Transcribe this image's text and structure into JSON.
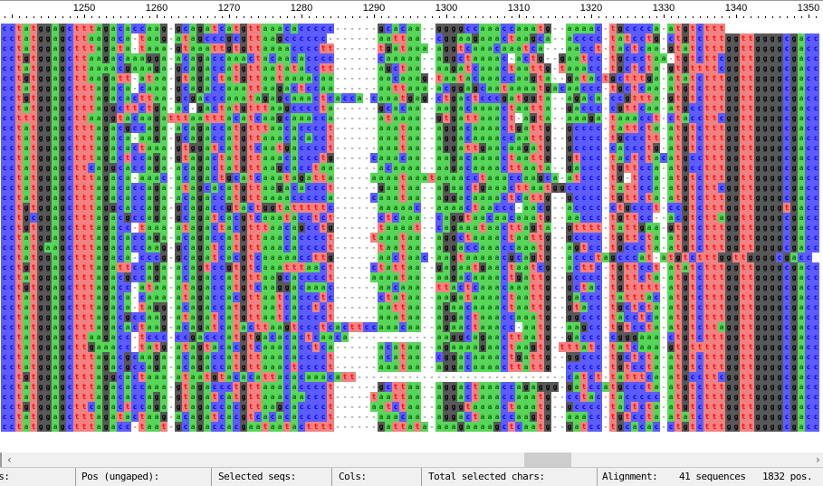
{
  "ruler": {
    "labels": [
      "1250",
      "1260",
      "1270",
      "1280",
      "1290",
      "1300",
      "1310",
      "1320",
      "1330",
      "1340",
      "1350"
    ]
  },
  "colors": {
    "a": {
      "bg": "#58d65a",
      "fg": "#0b6a0b"
    },
    "c": {
      "bg": "#5c5cff",
      "fg": "#0000e6"
    },
    "g": {
      "bg": "#585858",
      "fg": "#000000"
    },
    "t": {
      "bg": "#f28282",
      "fg": "#ff0000"
    },
    "-": {
      "bg": "#ffffff",
      "fg": "#8a8a8a"
    }
  },
  "sequences": [
    "cctatggagctttagacaccaag-gcagatcatgttaaacaccccc------gcacaa--ggggccaaaccaaatg--aaaac-tgcccca-atgtcttt",
    "cctatggagcttaagaca-taag-atagcccgcgttaagcccccc-------aattaa--cggaagaaactaagca--acccc-tatcctg-ctgtctttggttggggcgacc",
    "cctatggagctttagata-taaa-gtaaattgtgttaaaacccctt------tgataaa-aggtcaaacaaatca---aacct-tactcaa-gtatctttggttggggcgacc",
    "cctgtggagcttaagacaaagga-acagaccaaactacaacacccc------caaaaa--aggctaaaac-actg--gaatcc-tgccctaa-tgtcttcggttggggcgacc",
    "cctatggagcttaaaacgaaaga-gcagaccatgttaatatacctt------agctaa--aagatcaaactaattg-taaacc-tgctcta-gtgttttcggttggggcgacc",
    "cctgtggagcttaagatt-ataa-gtagactatgttaataaaacaa------aacaaag-taatacaaaccaagta--gatactgctttga-atatctttggttggggcgacc",
    "cctatggagctttagaca-caaa-gcagaccaaattaagactccaa------aattaaa-acggagcaataaaatgacaaccc-tgctcaa-atgtctttggttggggcgacc",
    "cctgtggagctttagacacttaa-gcgacccaaatagagcaaactcacca-caaatgag-ctgactcccgatggta--agaca-ccgttta-gtgtctttggttggggcgacc",
    "cctatggagctttaggcttctga-ac-gactatgtttaagccccta------gcacaa--aagacaaaactaatta--gaccc-cgttcaa-atgcctttggttggggcgacc",
    "cctttggagcttaaggtacaagatttaatttacatcaagcaaacca------ataaaa--gtgattaaact-agta--aaaga-taaacct-ctaccttcggttggggcgacc",
    "cctatggagctttagacgccaga-acagaccatgtttaacacccct------aaataa--aggacaaaactgattg--gcccc-tattcta-atgtctttggttggggcgacc",
    "cctatggagctttagaca-aaga-gcagaccatgttaaacacacct------aaataa--aggacaaaaccaattg--gcccc-tgccctt-atgtctttggttggggcgacc",
    "cctatggagctttagacactaaa-gtggatcatgtcaatgacccct------aaataa--aggattgaacaagatg--gcccc-caccctg-atgtctttggttggggcgacc",
    "cctatggagctttagactccaga-gtagactatgttaaacaccctg-----caaacaa--aagacaaaactaattg--gtccc-tactctacatgcctttggttggggcgacc",
    "cctatggagcttcaggcaccaga-acagactatgttaagcacctaa------acaaaa--aagacaaaacttaata--gaccc-tgttcca-atgcctttggttggggcgacc",
    "cctatggagctttagaca-aaac-acagactgcatcaaatagatta-----aaaataaataaaacctaaaccaagca-atccc-tg-tcca-atgtctttggttggggcgacc",
    "cctatggagctttagacaccaga-atagcacatgttaagacaccct------gaataa--agaactgaaacttaatggccccc-tattcca-atgtcttcggttggggcgacc",
    "cctatggagctttagacaccaga-acagaccatgttaaaaccccca-----caaataa--aggacaaaactcattg--gcccc-tgttcta-atgtctttggttggggcgacc",
    "cctgtggagctttaggcaccaga-gcagaccgtactggtatttttc------aaaaac--aaaactaaccc-aacg--acccc-ctgccct-ccgtctttggttggggtgacc",
    "cctgcggagctttagacgccaga-gcagatcacgtcaaatacctct------ctcaaa--caggtaacaacaaatg--aaccc-tgttcc--acgtcttaggttggggcgacc",
    "cctgtggagctttagacc-taaa-atagactacgtttaacagcctg------taaaat--cagaaataacttagta--gtttt-tattgaa-gtgtctttggttggggcgacc",
    "cctatggagctttagacaccaga-acagaccatgttaaacacccct-----taaataa--aggctaaaactaattg--gcccc-tgttcta-atgtctttggttggggcgacc",
    "cctatgaagctttagacaccaag-gcagatcatgttaaacacccct------taataa--aggaccaaaccaaatg--agtcc-tgcccta-atgtctttggttggggcgacc",
    "cctatggagctttagaca-cccg-gcagatcacgtcaaaaaccttg------aactaac-aagtaaaaacgcagtg--accctagcccat-atgtctttggttggggcgacc",
    "cctgtggagctttagattccaga-acagtccgtgtcaaatttaact-----ctattaa--gagaatgaactaatcg--acttc-tgttcct-atatctttggttggggcgacc",
    "cctatggagctttagacgccaga-acagaccatgttaagcacccct-----aaaataa--aagacaaaactgattg--gcccc-tgttcta-atgtctttggttggggcgacc",
    "cctgtggagctttagacc-ataa-atagaccatgtcaaggacaaac------aacaaa--ttactcaaacaaattg--gctac-tgttttt-atgtctttggttggggcgacc",
    "cctatggagctttagaca-caaa-atagaccacgttaatcaccctc------ctataa--aagataaaactaattg--gaccc-tatttac-atgtctttggttggggcgacc",
    "cctatggagctttagaca-tagg-acagaccatgttaatcacctct------aattaa--agaacaaaactaattg--gtacc-tgctcta-atgtctttggttggggcgacc",
    "cctatggagctttagacgccaag-atagatcatgttaatcacccct------aaataa--aggactaaaccaaatg--ggccc-tacctca-atgtctttggttggggcgacc",
    "cctatggagctttagacactaag-acagatcatacttaagtccctcacttccaaacaa--agaactaaacc-aatg--aagcc-tgtccta-atgtcttaggttggggcgacc",
    "cctatggagcttaagacc-tccc-ccgacccatgtgacacactcaaca------------aaggcagaacttaatg--gaccc-cgggaaa-ctgtctttggttggggcgacc",
    "cctatggagcttgaaacc-tatg-atagtacacgtcaaacacctca------acataa--agaaaagaactaagtg-tttatc-tatcaaa-gtgtttttggttggggcgacc",
    "cctatggagctttagacgcaaga-acagaccatgttaaacacccct------acataa--cggacaaaactgattg--ggccc-tgctcta-atgtctttggttggggcgacc",
    "cctatggagctttagacgccaga-acagaccatgttaaactcccct------aaataa--aggacaaaacttattg--ccccc-tgtccta-atgtctttggttggggcgacc",
    "cctgtggagctttaggcactaaa-ataatgtacacattacacaaacatt-----------------------------catct-tatttca-atgccttcggttggggcgacc",
    "cctatggagctttagacaccaaa-gtagaccctgttaaacacccct------gcttaa--aggactaaaccagaggg-gatccatgcccta-atgtctttggttggggcgacc",
    "cctatggagctttagacaccaga-gtagatcatgttaaacaaccct-----taattaa--aggactaaaccaaatg--cctac-taccccc-atgtctttggttggggcgacc",
    "cctgtggagcttcagactccaga-gtagaccacgttaagcacccct-----aatctaa--agggtaaaactaaatg--gcccc-tactcta-atgtctttggttggggcgacc",
    "cctatggagctttagatactaag-acagatcacgtcacacacccct------aaacaa--aggactaaaccaagtg--aaacc-tgtccta-atatctttggttggggcgacc",
    "cctatggagctttagacc-taat-gcagaccacgaataatactttt------gattata-aaagaaaagctcaatg--gatcc-tgcacac-ctgtctttggttggggcgacc"
  ],
  "scrollbar": {
    "position_fraction": 0.68,
    "left_arrow": "‹",
    "right_arrow": "›"
  },
  "status": {
    "pos_label": "Pos:",
    "pos_ungapped_label": "Pos (ungaped):",
    "selected_seqs_label": "Selected seqs:",
    "cols_label": "Cols:",
    "total_selected_chars_label": "Total selected chars:",
    "alignment_label": "Alignment:",
    "sequence_count": "41 sequences",
    "position_count": "1832 pos."
  }
}
